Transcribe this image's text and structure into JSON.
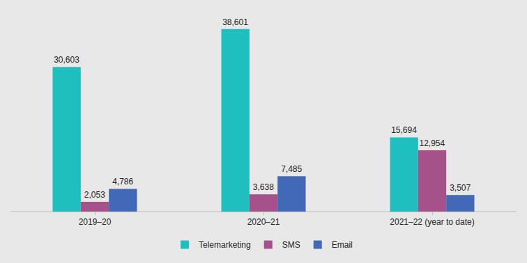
{
  "chart_data": {
    "type": "bar",
    "categories": [
      "2019–20",
      "2020–21",
      "2021–22 (year to date)"
    ],
    "series": [
      {
        "name": "Telemarketing",
        "color": "#1fbfc0",
        "values": [
          30603,
          38601,
          15694
        ],
        "value_labels": [
          "30,603",
          "38,601",
          "15,694"
        ]
      },
      {
        "name": "SMS",
        "color": "#a6528a",
        "values": [
          2053,
          3638,
          12954
        ],
        "value_labels": [
          "2,053",
          "3,638",
          "12,954"
        ]
      },
      {
        "name": "Email",
        "color": "#4169b8",
        "values": [
          4786,
          7485,
          3507
        ],
        "value_labels": [
          "4,786",
          "7,485",
          "3,507"
        ]
      }
    ],
    "data_labels": true,
    "legend": "bottom",
    "grid": false,
    "tick_labels": "x"
  }
}
